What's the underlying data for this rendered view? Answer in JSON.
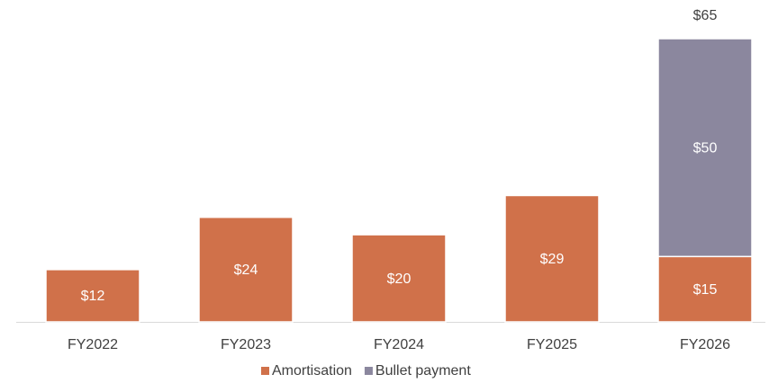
{
  "chart_data": {
    "type": "stacked_bar",
    "categories": [
      "FY2022",
      "FY2023",
      "FY2024",
      "FY2025",
      "FY2026"
    ],
    "series": [
      {
        "name": "Amortisation",
        "color": "#d0714a",
        "values": [
          12,
          24,
          20,
          29,
          15
        ],
        "value_labels": [
          "$12",
          "$24",
          "$20",
          "$29",
          "$15"
        ]
      },
      {
        "name": "Bullet payment",
        "color": "#8b879e",
        "values": [
          null,
          null,
          null,
          null,
          50
        ],
        "value_labels": [
          null,
          null,
          null,
          null,
          "$50"
        ]
      }
    ],
    "totals": [
      null,
      null,
      null,
      null,
      65
    ],
    "total_labels": [
      null,
      null,
      null,
      null,
      "$65"
    ],
    "ylim": [
      0,
      65
    ],
    "legend": "bottom"
  }
}
